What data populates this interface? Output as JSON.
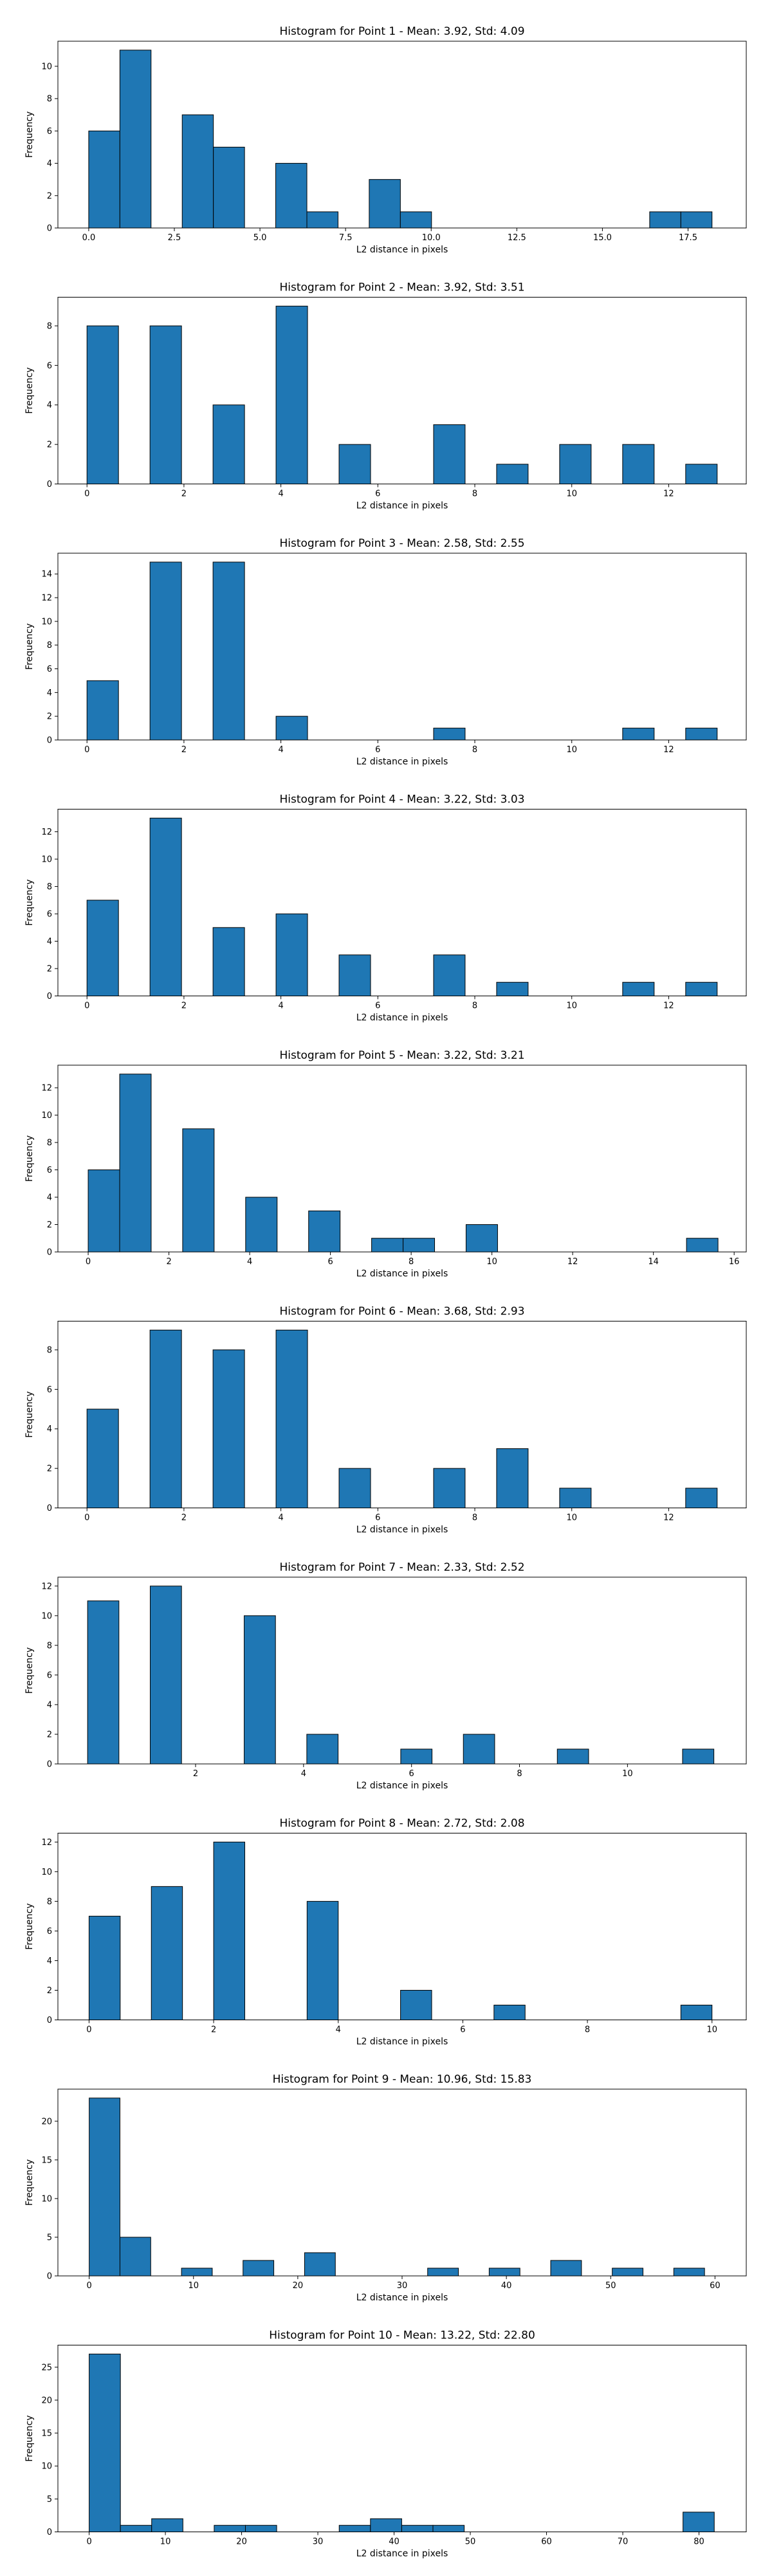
{
  "chart_data": [
    {
      "type": "bar",
      "title": "Histogram for Point 1 - Mean: 3.92, Std: 4.09",
      "xlabel": "L2 distance in pixels",
      "ylabel": "Frequency",
      "xlim": [
        -0.9,
        19.2
      ],
      "ylim": [
        0,
        11.55
      ],
      "xticks": [
        0,
        2.5,
        5,
        7.5,
        10,
        12.5,
        15,
        17.5
      ],
      "xtick_labels": [
        "0.0",
        "2.5",
        "5.0",
        "7.5",
        "10.0",
        "12.5",
        "15.0",
        "17.5"
      ],
      "yticks": [
        0,
        2,
        4,
        6,
        8,
        10
      ],
      "bar_width": 0.91,
      "bars": [
        {
          "x": 0,
          "value": 6
        },
        {
          "x": 0.91,
          "value": 11
        },
        {
          "x": 2.73,
          "value": 7
        },
        {
          "x": 3.64,
          "value": 5
        },
        {
          "x": 5.46,
          "value": 4
        },
        {
          "x": 6.37,
          "value": 1
        },
        {
          "x": 8.19,
          "value": 3
        },
        {
          "x": 9.1,
          "value": 1
        },
        {
          "x": 16.38,
          "value": 1
        },
        {
          "x": 17.29,
          "value": 1
        }
      ]
    },
    {
      "type": "bar",
      "title": "Histogram for Point 2 - Mean: 3.92, Std: 3.51",
      "xlabel": "L2 distance in pixels",
      "ylabel": "Frequency",
      "xlim": [
        -0.6,
        13.6
      ],
      "ylim": [
        0,
        9.45
      ],
      "xticks": [
        0,
        2,
        4,
        6,
        8,
        10,
        12
      ],
      "xtick_labels": [
        "0",
        "2",
        "4",
        "6",
        "8",
        "10",
        "12"
      ],
      "yticks": [
        0,
        2,
        4,
        6,
        8
      ],
      "bar_width": 0.65,
      "bars": [
        {
          "x": 0,
          "value": 8
        },
        {
          "x": 1.3,
          "value": 8
        },
        {
          "x": 2.6,
          "value": 4
        },
        {
          "x": 3.9,
          "value": 9
        },
        {
          "x": 5.2,
          "value": 2
        },
        {
          "x": 7.15,
          "value": 3
        },
        {
          "x": 8.45,
          "value": 1
        },
        {
          "x": 9.75,
          "value": 2
        },
        {
          "x": 11.05,
          "value": 2
        },
        {
          "x": 12.35,
          "value": 1
        }
      ]
    },
    {
      "type": "bar",
      "title": "Histogram for Point 3 - Mean: 2.58, Std: 2.55",
      "xlabel": "L2 distance in pixels",
      "ylabel": "Frequency",
      "xlim": [
        -0.6,
        13.6
      ],
      "ylim": [
        0,
        15.75
      ],
      "xticks": [
        0,
        2,
        4,
        6,
        8,
        10,
        12
      ],
      "xtick_labels": [
        "0",
        "2",
        "4",
        "6",
        "8",
        "10",
        "12"
      ],
      "yticks": [
        0,
        2,
        4,
        6,
        8,
        10,
        12,
        14
      ],
      "bar_width": 0.65,
      "bars": [
        {
          "x": 0,
          "value": 5
        },
        {
          "x": 1.3,
          "value": 15
        },
        {
          "x": 2.6,
          "value": 15
        },
        {
          "x": 3.9,
          "value": 2
        },
        {
          "x": 7.15,
          "value": 1
        },
        {
          "x": 11.05,
          "value": 1
        },
        {
          "x": 12.35,
          "value": 1
        }
      ]
    },
    {
      "type": "bar",
      "title": "Histogram for Point 4 - Mean: 3.22, Std: 3.03",
      "xlabel": "L2 distance in pixels",
      "ylabel": "Frequency",
      "xlim": [
        -0.6,
        13.6
      ],
      "ylim": [
        0,
        13.65
      ],
      "xticks": [
        0,
        2,
        4,
        6,
        8,
        10,
        12
      ],
      "xtick_labels": [
        "0",
        "2",
        "4",
        "6",
        "8",
        "10",
        "12"
      ],
      "yticks": [
        0,
        2,
        4,
        6,
        8,
        10,
        12
      ],
      "bar_width": 0.65,
      "bars": [
        {
          "x": 0,
          "value": 7
        },
        {
          "x": 1.3,
          "value": 13
        },
        {
          "x": 2.6,
          "value": 5
        },
        {
          "x": 3.9,
          "value": 6
        },
        {
          "x": 5.2,
          "value": 3
        },
        {
          "x": 7.15,
          "value": 3
        },
        {
          "x": 8.45,
          "value": 1
        },
        {
          "x": 11.05,
          "value": 1
        },
        {
          "x": 12.35,
          "value": 1
        }
      ]
    },
    {
      "type": "bar",
      "title": "Histogram for Point 5 - Mean: 3.22, Std: 3.21",
      "xlabel": "L2 distance in pixels",
      "ylabel": "Frequency",
      "xlim": [
        -0.75,
        16.3
      ],
      "ylim": [
        0,
        13.65
      ],
      "xticks": [
        0,
        2,
        4,
        6,
        8,
        10,
        12,
        14,
        16
      ],
      "xtick_labels": [
        "0",
        "2",
        "4",
        "6",
        "8",
        "10",
        "12",
        "14",
        "16"
      ],
      "yticks": [
        0,
        2,
        4,
        6,
        8,
        10,
        12
      ],
      "bar_width": 0.78,
      "bars": [
        {
          "x": 0,
          "value": 6
        },
        {
          "x": 0.78,
          "value": 13
        },
        {
          "x": 2.34,
          "value": 9
        },
        {
          "x": 3.9,
          "value": 4
        },
        {
          "x": 5.46,
          "value": 3
        },
        {
          "x": 7.02,
          "value": 1
        },
        {
          "x": 7.8,
          "value": 1
        },
        {
          "x": 9.36,
          "value": 2
        },
        {
          "x": 14.82,
          "value": 1
        }
      ]
    },
    {
      "type": "bar",
      "title": "Histogram for Point 6 - Mean: 3.68, Std: 2.93",
      "xlabel": "L2 distance in pixels",
      "ylabel": "Frequency",
      "xlim": [
        -0.6,
        13.6
      ],
      "ylim": [
        0,
        9.45
      ],
      "xticks": [
        0,
        2,
        4,
        6,
        8,
        10,
        12
      ],
      "xtick_labels": [
        "0",
        "2",
        "4",
        "6",
        "8",
        "10",
        "12"
      ],
      "yticks": [
        0,
        2,
        4,
        6,
        8
      ],
      "bar_width": 0.65,
      "bars": [
        {
          "x": 0,
          "value": 5
        },
        {
          "x": 1.3,
          "value": 9
        },
        {
          "x": 2.6,
          "value": 8
        },
        {
          "x": 3.9,
          "value": 9
        },
        {
          "x": 5.2,
          "value": 2
        },
        {
          "x": 7.15,
          "value": 2
        },
        {
          "x": 8.45,
          "value": 3
        },
        {
          "x": 9.75,
          "value": 1
        },
        {
          "x": 12.35,
          "value": 1
        }
      ]
    },
    {
      "type": "bar",
      "title": "Histogram for Point 7 - Mean: 2.33, Std: 2.52",
      "xlabel": "L2 distance in pixels",
      "ylabel": "Frequency",
      "xlim": [
        -0.55,
        12.2
      ],
      "ylim": [
        0,
        12.6
      ],
      "xticks": [
        2,
        4,
        6,
        8,
        10
      ],
      "xtick_labels": [
        "2",
        "4",
        "6",
        "8",
        "10"
      ],
      "yticks": [
        0,
        2,
        4,
        6,
        8,
        10,
        12
      ],
      "bar_width": 0.58,
      "bars": [
        {
          "x": 0,
          "value": 11
        },
        {
          "x": 1.16,
          "value": 12
        },
        {
          "x": 2.9,
          "value": 10
        },
        {
          "x": 4.06,
          "value": 2
        },
        {
          "x": 5.8,
          "value": 1
        },
        {
          "x": 6.96,
          "value": 2
        },
        {
          "x": 8.7,
          "value": 1
        },
        {
          "x": 11.02,
          "value": 1
        }
      ]
    },
    {
      "type": "bar",
      "title": "Histogram for Point 8 - Mean: 2.72, Std: 2.08",
      "xlabel": "L2 distance in pixels",
      "ylabel": "Frequency",
      "xlim": [
        -0.5,
        10.55
      ],
      "ylim": [
        0,
        12.6
      ],
      "xticks": [
        0,
        2,
        4,
        6,
        8,
        10
      ],
      "xtick_labels": [
        "0",
        "2",
        "4",
        "6",
        "8",
        "10"
      ],
      "yticks": [
        0,
        2,
        4,
        6,
        8,
        10,
        12
      ],
      "bar_width": 0.5,
      "bars": [
        {
          "x": 0,
          "value": 7
        },
        {
          "x": 1.0,
          "value": 9
        },
        {
          "x": 2.0,
          "value": 12
        },
        {
          "x": 3.5,
          "value": 8
        },
        {
          "x": 5.0,
          "value": 2
        },
        {
          "x": 6.5,
          "value": 1
        },
        {
          "x": 9.5,
          "value": 1
        }
      ]
    },
    {
      "type": "bar",
      "title": "Histogram for Point 9 - Mean: 10.96, Std: 15.83",
      "xlabel": "L2 distance in pixels",
      "ylabel": "Frequency",
      "xlim": [
        -3,
        63
      ],
      "ylim": [
        0,
        24.15
      ],
      "xticks": [
        0,
        10,
        20,
        30,
        40,
        50,
        60
      ],
      "xtick_labels": [
        "0",
        "10",
        "20",
        "30",
        "40",
        "50",
        "60"
      ],
      "yticks": [
        0,
        5,
        10,
        15,
        20
      ],
      "bar_width": 2.95,
      "bars": [
        {
          "x": 0,
          "value": 23
        },
        {
          "x": 2.95,
          "value": 5
        },
        {
          "x": 8.85,
          "value": 1
        },
        {
          "x": 14.75,
          "value": 2
        },
        {
          "x": 20.65,
          "value": 3
        },
        {
          "x": 32.45,
          "value": 1
        },
        {
          "x": 38.35,
          "value": 1
        },
        {
          "x": 44.25,
          "value": 2
        },
        {
          "x": 50.15,
          "value": 1
        },
        {
          "x": 56.05,
          "value": 1
        }
      ]
    },
    {
      "type": "bar",
      "title": "Histogram for Point 10 - Mean: 13.22, Std: 22.80",
      "xlabel": "L2 distance in pixels",
      "ylabel": "Frequency",
      "xlim": [
        -4.1,
        86.2
      ],
      "ylim": [
        0,
        28.35
      ],
      "xticks": [
        0,
        10,
        20,
        30,
        40,
        50,
        60,
        70,
        80
      ],
      "xtick_labels": [
        "0",
        "10",
        "20",
        "30",
        "40",
        "50",
        "60",
        "70",
        "80"
      ],
      "yticks": [
        0,
        5,
        10,
        15,
        20,
        25
      ],
      "bar_width": 4.1,
      "bars": [
        {
          "x": 0,
          "value": 27
        },
        {
          "x": 4.1,
          "value": 1
        },
        {
          "x": 8.2,
          "value": 2
        },
        {
          "x": 16.4,
          "value": 1
        },
        {
          "x": 20.5,
          "value": 1
        },
        {
          "x": 32.8,
          "value": 1
        },
        {
          "x": 36.9,
          "value": 2
        },
        {
          "x": 41.0,
          "value": 1
        },
        {
          "x": 45.1,
          "value": 1
        },
        {
          "x": 77.9,
          "value": 3
        }
      ]
    }
  ]
}
